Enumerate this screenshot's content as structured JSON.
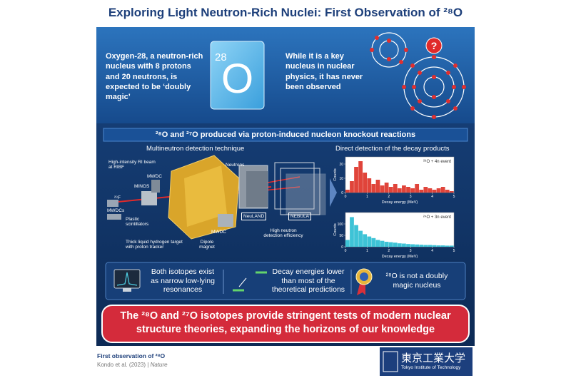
{
  "header": {
    "title": "Exploring Light Neutron-Rich Nuclei: First Observation of ²⁸O"
  },
  "intro": {
    "left": "Oxygen-28, a neutron-rich nucleus with 8 protons and 20 neutrons, is expected to be ‘doubly magic’",
    "element_mass": "28",
    "element_symbol": "O",
    "right": "While it is a key nucleus in nuclear physics, it has never been observed",
    "question": "?"
  },
  "experiment": {
    "banner": "²⁸O and ²⁷O produced via proton-induced nucleon knockout reactions",
    "technique_title": "Multineutron detection technique",
    "decay_title": "Direct detection of the decay products",
    "labels": [
      "High-intensity RI beam at RIBF",
      "MWDC",
      "MINOS",
      "²⁹F",
      "MWDCs",
      "Plastic scintillators",
      "Thick liquid hydrogen target with proton tracker",
      "Dipole magnet",
      "MWDC",
      "Neutrons",
      "NeuLAND",
      "NEBULA",
      "High neutron detection efficiency"
    ]
  },
  "histograms": [
    {
      "label": "²⁸O + 4n event",
      "y_label": "Counts",
      "x_label": "Decay energy (MeV)",
      "color": "#e0443a",
      "bins": [
        0,
        0.2,
        0.4,
        0.6,
        0.8,
        1,
        1.2,
        1.4,
        1.6,
        1.8,
        2,
        2.2,
        2.4,
        2.6,
        2.8,
        3,
        3.2,
        3.4,
        3.6,
        3.8,
        4,
        4.2,
        4.4,
        4.6,
        4.8,
        5
      ],
      "counts": [
        2,
        8,
        18,
        22,
        14,
        10,
        6,
        9,
        5,
        7,
        4,
        6,
        3,
        5,
        4,
        3,
        6,
        2,
        4,
        3,
        2,
        3,
        4,
        2,
        1
      ],
      "xlim": [
        0,
        5
      ],
      "xticks": [
        0,
        1,
        2,
        3,
        4,
        5
      ],
      "ylim": [
        0,
        25
      ],
      "yticks": [
        0,
        10,
        20
      ]
    },
    {
      "label": "²⁴O + 3n event",
      "y_label": "Counts",
      "x_label": "Decay energy (MeV)",
      "color": "#3ec3d6",
      "bins": [
        0,
        0.2,
        0.4,
        0.6,
        0.8,
        1,
        1.2,
        1.4,
        1.6,
        1.8,
        2,
        2.2,
        2.4,
        2.6,
        2.8,
        3,
        3.2,
        3.4,
        3.6,
        3.8,
        4,
        4.2,
        4.4,
        4.6,
        4.8,
        5
      ],
      "counts": [
        30,
        130,
        95,
        70,
        55,
        45,
        38,
        30,
        26,
        22,
        20,
        18,
        15,
        14,
        12,
        11,
        10,
        9,
        8,
        8,
        7,
        6,
        6,
        5,
        5
      ],
      "xlim": [
        0,
        5
      ],
      "xticks": [
        0,
        1,
        2,
        3,
        4,
        5
      ],
      "ylim": [
        0,
        150
      ],
      "yticks": [
        0,
        50,
        100
      ]
    }
  ],
  "findings": [
    "Both isotopes exist as narrow low-lying resonances",
    "Decay energies lower than most of the theoretical predictions",
    "²⁸O is not a doubly magic nucleus"
  ],
  "conclusion": "The ²⁸O and ²⁷O isotopes provide stringent tests of modern nuclear structure theories, expanding the horizons of our knowledge",
  "footer": {
    "title": "First observation of ²⁸O",
    "citation": "Kondo et al. (2023)",
    "separator": "|",
    "journal": "Nature",
    "logo": "東京工業大学",
    "logo_en": "Tokyo Institute of Technology"
  }
}
